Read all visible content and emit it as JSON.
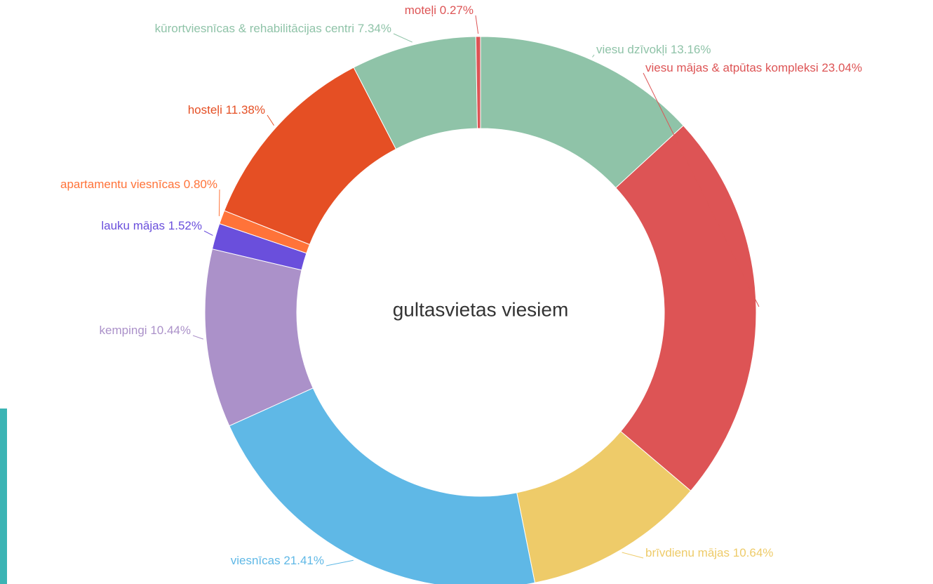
{
  "chart_data": {
    "type": "donut",
    "title": "gultasvietas viesiem",
    "categories": [
      "viesu dzīvokļi",
      "viesu mājas & atpūtas kompleksi",
      "brīvdienu mājas",
      "viesnīcas",
      "kempingi",
      "lauku mājas",
      "apartamentu viesnīcas",
      "hosteļi",
      "kūrortviesnīcas & rehabilitācijas centri",
      "moteļi"
    ],
    "values": [
      13.16,
      23.04,
      10.64,
      21.41,
      10.44,
      1.52,
      0.8,
      11.38,
      7.34,
      0.27
    ],
    "value_labels": [
      "13.16%",
      "23.04%",
      "10.64%",
      "21.41%",
      "10.44%",
      "1.52%",
      "0.80%",
      "11.38%",
      "7.34%",
      "0.27%"
    ],
    "colors": [
      "#8fc3a8",
      "#dd5455",
      "#eecb69",
      "#5fb8e6",
      "#ab91c9",
      "#6a4fdc",
      "#ff7339",
      "#e54f24",
      "#8fc3a8",
      "#dd5455"
    ]
  }
}
